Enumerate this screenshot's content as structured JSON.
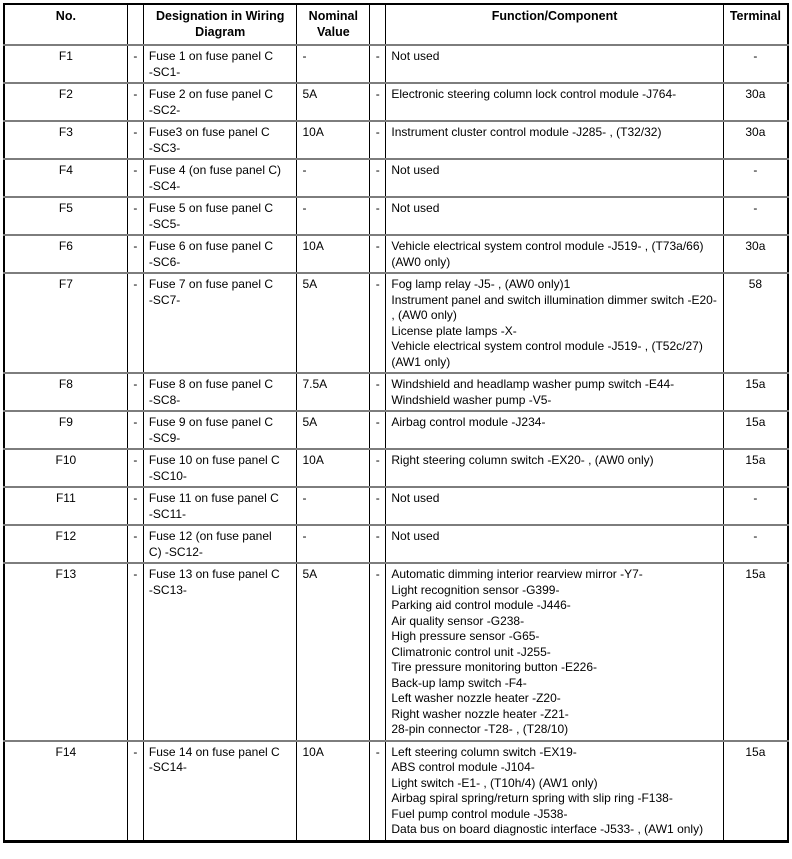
{
  "table": {
    "headers": {
      "no": "No.",
      "dash1": "",
      "designation": "Designation in Wiring\nDiagram",
      "nominal": "Nominal\nValue",
      "dash2": "",
      "function": "Function/Component",
      "terminal": "Terminal"
    },
    "rows": [
      {
        "no": "F1",
        "d1": "-",
        "designation": "Fuse 1 on fuse panel C\n-SC1-",
        "nominal": "-",
        "d2": "-",
        "functions": [
          "Not used"
        ],
        "terminal": "-"
      },
      {
        "no": "F2",
        "d1": "-",
        "designation": "Fuse 2 on fuse panel C\n-SC2-",
        "nominal": "5A",
        "d2": "-",
        "functions": [
          "Electronic steering column lock control module -J764-"
        ],
        "terminal": "30a"
      },
      {
        "no": "F3",
        "d1": "-",
        "designation": "Fuse3 on fuse panel C\n-SC3-",
        "nominal": "10A",
        "d2": "-",
        "functions": [
          "Instrument cluster control module -J285- , (T32/32)"
        ],
        "terminal": "30a"
      },
      {
        "no": "F4",
        "d1": "-",
        "designation": "Fuse 4 (on fuse panel C)\n-SC4-",
        "nominal": "-",
        "d2": "-",
        "functions": [
          "Not used"
        ],
        "terminal": "-"
      },
      {
        "no": "F5",
        "d1": "-",
        "designation": "Fuse 5 on fuse panel C\n-SC5-",
        "nominal": "-",
        "d2": "-",
        "functions": [
          "Not used"
        ],
        "terminal": "-"
      },
      {
        "no": "F6",
        "d1": "-",
        "designation": "Fuse 6 on fuse panel C\n-SC6-",
        "nominal": "10A",
        "d2": "-",
        "functions": [
          "Vehicle electrical system control module -J519- , (T73a/66) (AW0 only)"
        ],
        "terminal": "30a"
      },
      {
        "no": "F7",
        "d1": "-",
        "designation": "Fuse 7 on fuse panel C\n-SC7-",
        "nominal": "5A",
        "d2": "-",
        "functions": [
          "Fog lamp relay -J5- , (AW0 only)1",
          "Instrument panel and switch illumination dimmer switch -E20- , (AW0 only)",
          "License plate lamps -X-",
          "Vehicle electrical system control module -J519- , (T52c/27) (AW1 only)"
        ],
        "terminal": "58"
      },
      {
        "no": "F8",
        "d1": "-",
        "designation": "Fuse 8 on fuse panel C\n-SC8-",
        "nominal": "7.5A",
        "d2": "-",
        "functions": [
          "Windshield and headlamp washer pump switch -E44-",
          "Windshield washer pump -V5-"
        ],
        "terminal": "15a"
      },
      {
        "no": "F9",
        "d1": "-",
        "designation": "Fuse 9 on fuse panel C\n-SC9-",
        "nominal": "5A",
        "d2": "-",
        "functions": [
          "Airbag control module -J234-"
        ],
        "terminal": "15a"
      },
      {
        "no": "F10",
        "d1": "-",
        "designation": "Fuse 10 on fuse panel C\n-SC10-",
        "nominal": "10A",
        "d2": "-",
        "functions": [
          "Right steering column switch -EX20- , (AW0 only)"
        ],
        "terminal": "15a"
      },
      {
        "no": "F11",
        "d1": "-",
        "designation": "Fuse 11 on fuse panel C\n-SC11-",
        "nominal": "-",
        "d2": "-",
        "functions": [
          "Not used"
        ],
        "terminal": "-"
      },
      {
        "no": "F12",
        "d1": "-",
        "designation": "Fuse 12 (on fuse panel\nC) -SC12-",
        "nominal": "-",
        "d2": "-",
        "functions": [
          "Not used"
        ],
        "terminal": "-"
      },
      {
        "no": "F13",
        "d1": "-",
        "designation": "Fuse 13 on fuse panel C\n-SC13-",
        "nominal": "5A",
        "d2": "-",
        "functions": [
          "Automatic dimming interior rearview mirror -Y7-",
          "Light recognition sensor -G399-",
          "Parking aid control module -J446-",
          "Air quality sensor -G238-",
          "High pressure sensor -G65-",
          "Climatronic control unit -J255-",
          "Tire pressure monitoring button -E226-",
          "Back-up lamp switch -F4-",
          "Left washer nozzle heater -Z20-",
          "Right washer nozzle heater -Z21-",
          "28-pin connector -T28- , (T28/10)"
        ],
        "terminal": "15a"
      },
      {
        "no": "F14",
        "d1": "-",
        "designation": "Fuse 14 on fuse panel C\n-SC14-",
        "nominal": "10A",
        "d2": "-",
        "functions": [
          "Left steering column switch -EX19-",
          "ABS control module -J104-",
          "Light switch -E1- , (T10h/4) (AW1 only)",
          "Airbag spiral spring/return spring with slip ring -F138-",
          "Fuel pump control module -J538-",
          "Data bus on board diagnostic interface -J533- , (AW1 only)"
        ],
        "terminal": "15a"
      }
    ]
  }
}
